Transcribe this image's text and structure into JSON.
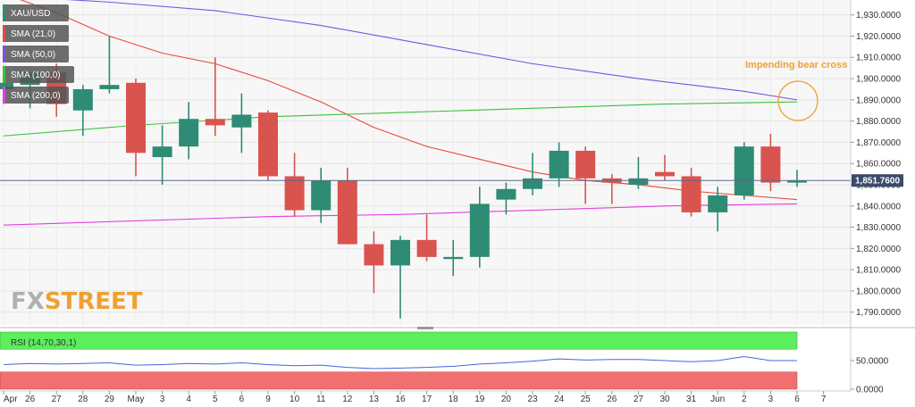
{
  "legend": {
    "symbol": "XAU/USD",
    "sma21": "SMA (21,0)",
    "sma50": "SMA (50,0)",
    "sma100": "SMA (100,0)",
    "sma200": "SMA (200,0)"
  },
  "annotation": "Impending bear cross",
  "watermark": {
    "part1": "FX",
    "part2": "STREET"
  },
  "last_price": "1,851.7600",
  "rsi": {
    "label": "RSI (14,70,30,1)",
    "ticks": [
      "50.0000",
      "0.0000"
    ]
  },
  "colors": {
    "up": "#2e8b74",
    "down": "#d9534f",
    "sma21": "#e8483a",
    "sma50": "#7b52e0",
    "sma100": "#3dbf3d",
    "sma200": "#e040e0",
    "annotation": "#f0a030",
    "rsi_line": "#4466dd",
    "rsi_overbought": "#5cee5c",
    "rsi_oversold": "#f07070"
  },
  "chart_data": {
    "type": "candlestick",
    "x_tick_labels": [
      "Apr",
      "26",
      "27",
      "28",
      "29",
      "May",
      "3",
      "4",
      "5",
      "6",
      "9",
      "10",
      "11",
      "12",
      "13",
      "16",
      "17",
      "18",
      "19",
      "20",
      "23",
      "24",
      "25",
      "26",
      "27",
      "30",
      "31",
      "Jun",
      "2",
      "3",
      "6",
      "7"
    ],
    "y_ticks": [
      1790,
      1800,
      1810,
      1820,
      1830,
      1840,
      1850,
      1860,
      1870,
      1880,
      1890,
      1900,
      1910,
      1920,
      1930
    ],
    "y_tick_labels": [
      "1,790.0000",
      "1,800.0000",
      "1,810.0000",
      "1,820.0000",
      "1,830.0000",
      "1,840.0000",
      "1,850.0000",
      "1,860.0000",
      "1,870.0000",
      "1,880.0000",
      "1,890.0000",
      "1,900.0000",
      "1,910.0000",
      "1,920.0000",
      "1,930.0000"
    ],
    "ylim": [
      1784,
      1937
    ],
    "candles": [
      {
        "x": 0,
        "o": 1895,
        "h": 1906,
        "l": 1888,
        "c": 1898
      },
      {
        "x": 1,
        "o": 1897,
        "h": 1903,
        "l": 1886,
        "c": 1903
      },
      {
        "x": 2,
        "o": 1903,
        "h": 1907,
        "l": 1882,
        "c": 1888
      },
      {
        "x": 3,
        "o": 1885,
        "h": 1897,
        "l": 1873,
        "c": 1895
      },
      {
        "x": 4,
        "o": 1895,
        "h": 1920,
        "l": 1893,
        "c": 1897
      },
      {
        "x": 5,
        "o": 1898,
        "h": 1900,
        "l": 1854,
        "c": 1865
      },
      {
        "x": 6,
        "o": 1863,
        "h": 1878,
        "l": 1850,
        "c": 1868
      },
      {
        "x": 7,
        "o": 1868,
        "h": 1889,
        "l": 1862,
        "c": 1881
      },
      {
        "x": 8,
        "o": 1881,
        "h": 1910,
        "l": 1873,
        "c": 1878
      },
      {
        "x": 9,
        "o": 1877,
        "h": 1893,
        "l": 1865,
        "c": 1883
      },
      {
        "x": 10,
        "o": 1884,
        "h": 1885,
        "l": 1852,
        "c": 1854
      },
      {
        "x": 11,
        "o": 1854,
        "h": 1865,
        "l": 1835,
        "c": 1838
      },
      {
        "x": 12,
        "o": 1838,
        "h": 1858,
        "l": 1832,
        "c": 1852
      },
      {
        "x": 13,
        "o": 1852,
        "h": 1858,
        "l": 1822,
        "c": 1822
      },
      {
        "x": 14,
        "o": 1822,
        "h": 1828,
        "l": 1799,
        "c": 1812
      },
      {
        "x": 15,
        "o": 1812,
        "h": 1826,
        "l": 1787,
        "c": 1824
      },
      {
        "x": 16,
        "o": 1824,
        "h": 1836,
        "l": 1814,
        "c": 1816
      },
      {
        "x": 17,
        "o": 1815,
        "h": 1824,
        "l": 1807,
        "c": 1816
      },
      {
        "x": 18,
        "o": 1816,
        "h": 1849,
        "l": 1811,
        "c": 1841
      },
      {
        "x": 19,
        "o": 1843,
        "h": 1851,
        "l": 1836,
        "c": 1848
      },
      {
        "x": 20,
        "o": 1848,
        "h": 1865,
        "l": 1845,
        "c": 1853
      },
      {
        "x": 21,
        "o": 1853,
        "h": 1870,
        "l": 1849,
        "c": 1866
      },
      {
        "x": 22,
        "o": 1866,
        "h": 1868,
        "l": 1841,
        "c": 1853
      },
      {
        "x": 23,
        "o": 1853,
        "h": 1855,
        "l": 1841,
        "c": 1851
      },
      {
        "x": 24,
        "o": 1850,
        "h": 1863,
        "l": 1848,
        "c": 1853
      },
      {
        "x": 25,
        "o": 1856,
        "h": 1864,
        "l": 1852,
        "c": 1854
      },
      {
        "x": 26,
        "o": 1854,
        "h": 1858,
        "l": 1835,
        "c": 1837
      },
      {
        "x": 27,
        "o": 1837,
        "h": 1849,
        "l": 1828,
        "c": 1845
      },
      {
        "x": 28,
        "o": 1845,
        "h": 1870,
        "l": 1843,
        "c": 1868
      },
      {
        "x": 29,
        "o": 1868,
        "h": 1874,
        "l": 1847,
        "c": 1851
      },
      {
        "x": 30,
        "o": 1851,
        "h": 1857,
        "l": 1849,
        "c": 1852
      }
    ],
    "series": [
      {
        "name": "SMA (21,0)",
        "x": [
          0,
          2,
          4,
          6,
          8,
          10,
          12,
          14,
          16,
          18,
          20,
          22,
          24,
          26,
          28,
          30
        ],
        "y": [
          1940,
          1931,
          1920,
          1912,
          1907,
          1899,
          1889,
          1877,
          1868,
          1862,
          1856,
          1852,
          1850,
          1847,
          1845,
          1843
        ]
      },
      {
        "name": "SMA (50,0)",
        "x": [
          0,
          4,
          8,
          12,
          16,
          20,
          24,
          26,
          28,
          30
        ],
        "y": [
          1939,
          1936,
          1932,
          1925,
          1916,
          1907,
          1900,
          1897,
          1894,
          1890
        ]
      },
      {
        "name": "SMA (100,0)",
        "x": [
          0,
          5,
          10,
          15,
          20,
          25,
          30
        ],
        "y": [
          1873,
          1878,
          1882,
          1884,
          1886,
          1888,
          1889
        ]
      },
      {
        "name": "SMA (200,0)",
        "x": [
          0,
          5,
          10,
          15,
          20,
          25,
          30
        ],
        "y": [
          1831,
          1833,
          1835,
          1836,
          1838,
          1840,
          1841
        ]
      }
    ],
    "rsi": {
      "ylim": [
        0,
        100
      ],
      "levels": [
        70,
        30
      ],
      "values": [
        43,
        45,
        44,
        45,
        46,
        42,
        43,
        45,
        44,
        46,
        43,
        41,
        42,
        38,
        36,
        37,
        38,
        40,
        44,
        46,
        49,
        53,
        51,
        52,
        52,
        50,
        48,
        50,
        57,
        50,
        50
      ]
    }
  }
}
